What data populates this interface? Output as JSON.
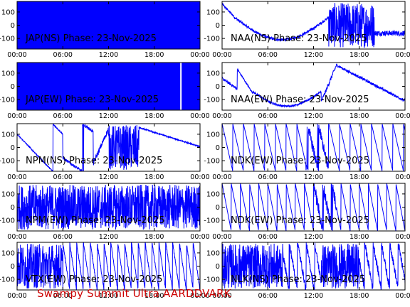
{
  "footer": {
    "text": "Swampy Summit Ultra AARDDVARK",
    "color": "#cc0000"
  },
  "colors": {
    "trace": "#0000ff",
    "axis": "#000000",
    "label": "#000000"
  },
  "chart_data": [
    {
      "type": "line",
      "title": "JAP(NS) Phase: 23-Nov-2025",
      "xticks": [
        "00:00",
        "06:00",
        "12:00",
        "18:00",
        "00:00"
      ],
      "yticks": [
        100,
        0,
        -100
      ],
      "ylim": [
        -180,
        180
      ],
      "xlim": [
        0,
        24
      ],
      "pattern": "solid"
    },
    {
      "type": "line",
      "title": "NAA(NS) Phase: 23-Nov-2025",
      "xticks": [
        "00:00",
        "06:00",
        "12:00",
        "18:00",
        "00:00"
      ],
      "yticks": [
        100,
        0,
        -100
      ],
      "ylim": [
        -180,
        180
      ],
      "xlim": [
        0,
        24
      ],
      "pattern": "naa_ns"
    },
    {
      "type": "line",
      "title": "JAP(EW) Phase: 23-Nov-2025",
      "xticks": [
        "00:00",
        "06:00",
        "12:00",
        "18:00",
        "00:00"
      ],
      "yticks": [
        100,
        0,
        -100
      ],
      "ylim": [
        -180,
        180
      ],
      "xlim": [
        0,
        24
      ],
      "pattern": "solid_gap"
    },
    {
      "type": "line",
      "title": "NAA(EW) Phase: 23-Nov-2025",
      "xticks": [
        "00:00",
        "06:00",
        "12:00",
        "18:00",
        "00:00"
      ],
      "yticks": [
        100,
        0,
        -100
      ],
      "ylim": [
        -180,
        180
      ],
      "xlim": [
        0,
        24
      ],
      "pattern": "naa_ew"
    },
    {
      "type": "line",
      "title": "NPM(NS) Phase: 23-Nov-2025",
      "xticks": [
        "00:00",
        "06:00",
        "12:00",
        "18:00",
        "00:00"
      ],
      "yticks": [
        100,
        0,
        -100
      ],
      "ylim": [
        -180,
        180
      ],
      "xlim": [
        0,
        24
      ],
      "pattern": "npm_ns"
    },
    {
      "type": "line",
      "title": "NDK(EW) Phase: 23-Nov-2025",
      "xticks": [
        "00:00",
        "06:00",
        "12:00",
        "18:00",
        "00:00"
      ],
      "yticks": [
        100,
        0,
        -100
      ],
      "ylim": [
        -180,
        180
      ],
      "xlim": [
        0,
        24
      ],
      "pattern": "sawtooth"
    },
    {
      "type": "line",
      "title": "NPM(EW) Phase: 23-Nov-2025",
      "xticks": [
        "00:00",
        "06:00",
        "12:00",
        "18:00",
        "00:00"
      ],
      "yticks": [
        100,
        0,
        -100
      ],
      "ylim": [
        -180,
        180
      ],
      "xlim": [
        0,
        24
      ],
      "pattern": "dense_noise"
    },
    {
      "type": "line",
      "title": "NDK(EW) Phase: 23-Nov-2025",
      "xticks": [
        "00:00",
        "06:00",
        "12:00",
        "18:00",
        "00:00"
      ],
      "yticks": [
        100,
        0,
        -100
      ],
      "ylim": [
        -180,
        180
      ],
      "xlim": [
        0,
        24
      ],
      "pattern": "sawtooth_fast"
    },
    {
      "type": "line",
      "title": "VTX(EW) Phase: 23-Nov-2025",
      "xticks": [
        "00:00",
        "06:00",
        "12:00",
        "18:00",
        "00:00"
      ],
      "yticks": [
        100,
        0,
        -100
      ],
      "ylim": [
        -180,
        180
      ],
      "xlim": [
        0,
        24
      ],
      "pattern": "vtx"
    },
    {
      "type": "line",
      "title": "NLK(NS) Phase: 23-Nov-2025",
      "xticks": [
        "00:00",
        "06:00",
        "12:00",
        "18:00",
        "00:00"
      ],
      "yticks": [
        100,
        0,
        -100
      ],
      "ylim": [
        -180,
        180
      ],
      "xlim": [
        0,
        24
      ],
      "pattern": "nlk"
    }
  ]
}
